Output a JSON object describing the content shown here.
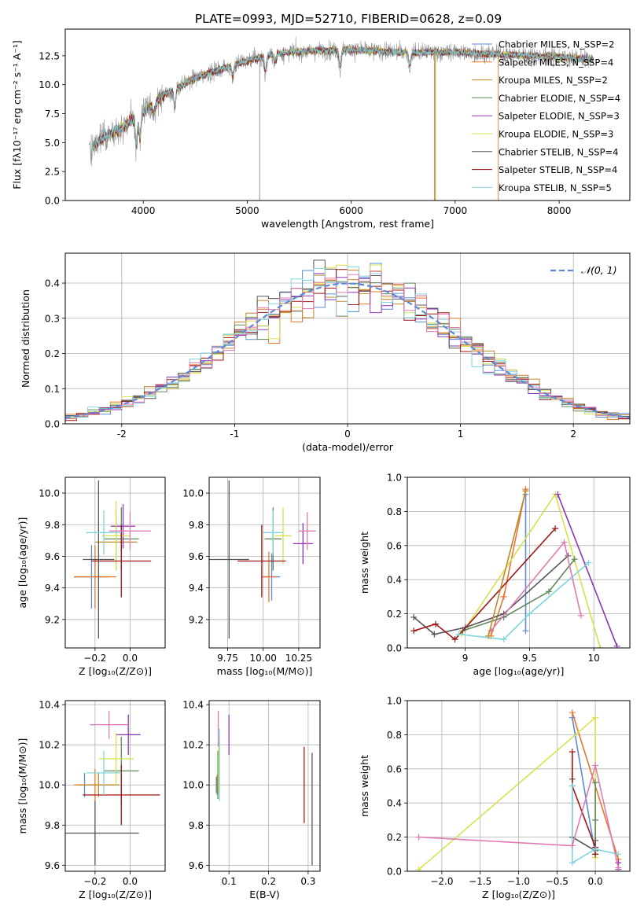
{
  "title": "PLATE=0993, MJD=52710, FIBERID=0628, z=0.09",
  "colors": {
    "axes": "#000000",
    "grid": "#b0b0b0",
    "series": [
      "#5b8bd8",
      "#e8762a",
      "#c08a2c",
      "#5c8a5c",
      "#8e35b5",
      "#d8e04a",
      "#555555",
      "#a01515",
      "#7ed6dc",
      "#e07ab0",
      "#888888"
    ]
  },
  "chart_data": [
    {
      "id": "spectrum",
      "type": "line",
      "xlabel": "wavelength [Angstrom, rest frame]",
      "ylabel": "Flux [fλ10⁻¹⁷ erg cm⁻² s⁻¹ A⁻¹]",
      "xlim": [
        3250,
        8680
      ],
      "ylim": [
        0,
        14.8
      ],
      "xticks": [
        4000,
        5000,
        6000,
        7000,
        8000
      ],
      "yticks": [
        0.0,
        2.5,
        5.0,
        7.5,
        10.0,
        12.5
      ],
      "grid": false,
      "legend_position": "right",
      "legend": [
        "Chabrier MILES, N_SSP=2",
        "Salpeter MILES, N_SSP=4",
        "Kroupa MILES, N_SSP=2",
        "Chabrier ELODIE, N_SSP=4",
        "Salpeter ELODIE, N_SSP=3",
        "Kroupa ELODIE, N_SSP=3",
        "Chabrier STELIB, N_SSP=4",
        "Salpeter STELIB, N_SSP=4",
        "Kroupa STELIB, N_SSP=5"
      ],
      "continuum": {
        "x": [
          3500,
          3650,
          3800,
          4000,
          4200,
          4500,
          4800,
          5000,
          5300,
          5600,
          6000,
          6500,
          7000,
          7500,
          8000,
          8300
        ],
        "y": [
          4.6,
          5.6,
          6.3,
          7.6,
          9.1,
          10.6,
          11.5,
          12.1,
          12.7,
          12.9,
          13.0,
          12.8,
          12.8,
          12.6,
          12.4,
          12.2
        ]
      },
      "features": [
        {
          "name": "CaII",
          "x": 3934,
          "depth": 2.8
        },
        {
          "name": "CaII",
          "x": 3968,
          "depth": 2.4
        },
        {
          "name": "Hdelta",
          "x": 4102,
          "depth": 1.3
        },
        {
          "name": "Gband",
          "x": 4304,
          "depth": 1.9
        },
        {
          "name": "Hbeta",
          "x": 4861,
          "depth": 1.1
        },
        {
          "name": "Mgb",
          "x": 5175,
          "depth": 1.6
        },
        {
          "name": "Fe",
          "x": 5270,
          "depth": 0.8
        },
        {
          "name": "NaD",
          "x": 5893,
          "depth": 1.8
        },
        {
          "name": "Halpha",
          "x": 6563,
          "depth": 1.4
        }
      ],
      "spikes": [
        {
          "x": 5120,
          "to": 0
        },
        {
          "x": 6800,
          "to": 0
        },
        {
          "x": 6810,
          "to": 0
        },
        {
          "x": 7415,
          "to": 0
        }
      ]
    },
    {
      "id": "residuals",
      "type": "histogram",
      "xlabel": "(data-model)/error",
      "ylabel": "Normed distribution",
      "xlim": [
        -2.5,
        2.5
      ],
      "ylim": [
        0,
        0.485
      ],
      "xticks": [
        -2,
        -1,
        0,
        1,
        2
      ],
      "yticks": [
        0.0,
        0.1,
        0.2,
        0.3,
        0.4
      ],
      "grid": true,
      "legend_position": "top-right",
      "legend": [
        "𝒩(0, 1)"
      ],
      "reference": {
        "name": "𝒩(0, 1)",
        "mean": 0,
        "sigma": 1
      }
    },
    {
      "id": "age_vs_Z",
      "type": "errorbar",
      "xlabel": "Z [log₁₀(Z/Z⊙)]",
      "ylabel": "age  [log₁₀(age/yr)]",
      "xlim": [
        -0.37,
        0.2
      ],
      "ylim": [
        9.02,
        10.1
      ],
      "xticks": [
        -0.2,
        0.0
      ],
      "xticklabels": [
        "−0.2",
        "0.0"
      ],
      "yticks": [
        9.2,
        9.4,
        9.6,
        9.8,
        10.0
      ],
      "grid": true,
      "points": [
        {
          "x": -0.22,
          "y": 9.47,
          "xerr": 0.1,
          "yerr": 0.2,
          "color": 0
        },
        {
          "x": -0.2,
          "y": 9.47,
          "xerr": 0.12,
          "yerr": 0.2,
          "color": 1
        },
        {
          "x": -0.08,
          "y": 9.69,
          "xerr": 0.12,
          "yerr": 0.18,
          "color": 2
        },
        {
          "x": -0.05,
          "y": 9.71,
          "xerr": 0.1,
          "yerr": 0.2,
          "color": 3
        },
        {
          "x": -0.04,
          "y": 9.79,
          "xerr": 0.07,
          "yerr": 0.14,
          "color": 4
        },
        {
          "x": -0.08,
          "y": 9.73,
          "xerr": 0.08,
          "yerr": 0.22,
          "color": 5
        },
        {
          "x": -0.18,
          "y": 9.58,
          "xerr": 0.09,
          "yerr": 0.5,
          "color": 6
        },
        {
          "x": -0.05,
          "y": 9.57,
          "xerr": 0.17,
          "yerr": 0.23,
          "color": 7
        },
        {
          "x": -0.15,
          "y": 9.75,
          "xerr": 0.1,
          "yerr": 0.14,
          "color": 8
        },
        {
          "x": 0.0,
          "y": 9.76,
          "xerr": 0.12,
          "yerr": 0.12,
          "color": 9
        }
      ]
    },
    {
      "id": "age_vs_mass",
      "type": "errorbar",
      "xlabel": "mass [log₁₀(M/M⊙)]",
      "ylabel": "",
      "xlim": [
        9.62,
        10.4
      ],
      "ylim": [
        9.02,
        10.1
      ],
      "xticks": [
        9.75,
        10.0,
        10.25
      ],
      "xticklabels": [
        "9.75",
        "10.00",
        "10.25"
      ],
      "yticks": [
        9.2,
        9.4,
        9.6,
        9.8,
        10.0
      ],
      "grid": true,
      "points": [
        {
          "x": 10.06,
          "y": 9.47,
          "xerr": 0.06,
          "yerr": 0.15,
          "color": 0
        },
        {
          "x": 10.04,
          "y": 9.47,
          "xerr": 0.05,
          "yerr": 0.16,
          "color": 1
        },
        {
          "x": 10.07,
          "y": 9.71,
          "xerr": 0.05,
          "yerr": 0.18,
          "color": 2
        },
        {
          "x": 10.07,
          "y": 9.71,
          "xerr": 0.06,
          "yerr": 0.2,
          "color": 3
        },
        {
          "x": 10.28,
          "y": 9.68,
          "xerr": 0.07,
          "yerr": 0.13,
          "color": 4
        },
        {
          "x": 10.14,
          "y": 9.73,
          "xerr": 0.06,
          "yerr": 0.18,
          "color": 5
        },
        {
          "x": 9.76,
          "y": 9.58,
          "xerr": 0.14,
          "yerr": 0.5,
          "color": 6
        },
        {
          "x": 9.99,
          "y": 9.57,
          "xerr": 0.17,
          "yerr": 0.23,
          "color": 7
        },
        {
          "x": 10.07,
          "y": 9.75,
          "xerr": 0.07,
          "yerr": 0.14,
          "color": 8
        },
        {
          "x": 10.31,
          "y": 9.76,
          "xerr": 0.06,
          "yerr": 0.12,
          "color": 9
        }
      ]
    },
    {
      "id": "weight_vs_age",
      "type": "line",
      "xlabel": "age  [log₁₀(age/yr)]",
      "ylabel": "mass weight",
      "xlim": [
        8.55,
        10.28
      ],
      "ylim": [
        0,
        1.0
      ],
      "xticks": [
        9.0,
        9.5,
        10.0
      ],
      "yticks": [
        0.0,
        0.2,
        0.4,
        0.6,
        0.8,
        1.0
      ],
      "grid": true,
      "series": [
        {
          "color": 0,
          "x": [
            9.47,
            9.47
          ],
          "y": [
            0.1,
            0.9
          ]
        },
        {
          "color": 1,
          "x": [
            9.2,
            9.3,
            9.47,
            9.47
          ],
          "y": [
            0.07,
            0.3,
            0.93,
            0.92
          ]
        },
        {
          "color": 5,
          "x": [
            8.97,
            9.7,
            10.05
          ],
          "y": [
            0.08,
            0.9,
            0.0
          ]
        },
        {
          "color": 3,
          "x": [
            8.98,
            9.3,
            9.65,
            9.85
          ],
          "y": [
            0.1,
            0.18,
            0.33,
            0.52
          ]
        },
        {
          "color": 4,
          "x": [
            9.72,
            10.18
          ],
          "y": [
            0.9,
            0.01
          ]
        },
        {
          "color": 6,
          "x": [
            8.6,
            8.76,
            9.0,
            9.3,
            9.8
          ],
          "y": [
            0.18,
            0.08,
            0.12,
            0.2,
            0.54
          ]
        },
        {
          "color": 7,
          "x": [
            8.6,
            8.77,
            8.92,
            9.7
          ],
          "y": [
            0.1,
            0.14,
            0.05,
            0.7
          ]
        },
        {
          "color": 8,
          "x": [
            8.95,
            9.3,
            9.5,
            9.96
          ],
          "y": [
            0.08,
            0.05,
            0.2,
            0.5
          ]
        },
        {
          "color": 9,
          "x": [
            9.2,
            9.77,
            9.9
          ],
          "y": [
            0.1,
            0.62,
            0.19
          ]
        },
        {
          "color": 2,
          "x": [
            9.18,
            9.47
          ],
          "y": [
            0.07,
            0.92
          ]
        }
      ]
    },
    {
      "id": "mass_vs_Z",
      "type": "errorbar",
      "xlabel": "Z [log₁₀(Z/Z⊙)]",
      "ylabel": "mass [log₁₀(M/M⊙)]",
      "xlim": [
        -0.37,
        0.2
      ],
      "ylim": [
        9.57,
        10.42
      ],
      "xticks": [
        -0.2,
        0.0
      ],
      "xticklabels": [
        "−0.2",
        "0.0"
      ],
      "yticks": [
        9.6,
        9.8,
        10.0,
        10.2,
        10.4
      ],
      "grid": true,
      "points": [
        {
          "x": -0.26,
          "y": 10.0,
          "xerr": 0.04,
          "yerr": 0.06,
          "color": 0
        },
        {
          "x": -0.2,
          "y": 10.0,
          "xerr": 0.12,
          "yerr": 0.08,
          "color": 1
        },
        {
          "x": -0.18,
          "y": 10.0,
          "xerr": 0.12,
          "yerr": 0.06,
          "color": 2
        },
        {
          "x": -0.05,
          "y": 10.07,
          "xerr": 0.1,
          "yerr": 0.17,
          "color": 3
        },
        {
          "x": -0.01,
          "y": 10.25,
          "xerr": 0.07,
          "yerr": 0.1,
          "color": 4
        },
        {
          "x": -0.08,
          "y": 10.13,
          "xerr": 0.1,
          "yerr": 0.13,
          "color": 5
        },
        {
          "x": -0.2,
          "y": 9.76,
          "xerr": 0.25,
          "yerr": 0.16,
          "color": 6
        },
        {
          "x": -0.05,
          "y": 9.95,
          "xerr": 0.22,
          "yerr": 0.15,
          "color": 7
        },
        {
          "x": -0.15,
          "y": 10.06,
          "xerr": 0.1,
          "yerr": 0.11,
          "color": 8
        },
        {
          "x": -0.12,
          "y": 10.3,
          "xerr": 0.11,
          "yerr": 0.07,
          "color": 9
        }
      ]
    },
    {
      "id": "mass_vs_ebv",
      "type": "errorbar",
      "xlabel": "E(B-V)",
      "ylabel": "",
      "xlim": [
        0.05,
        0.33
      ],
      "ylim": [
        9.57,
        10.42
      ],
      "xticks": [
        0.1,
        0.2,
        0.3
      ],
      "xticklabels": [
        "0.1",
        "0.2",
        "0.3"
      ],
      "yticks": [
        9.6,
        9.8,
        10.0,
        10.2,
        10.4
      ],
      "grid": true,
      "points": [
        {
          "x": 0.068,
          "y": 10.0,
          "xerr": 0,
          "yerr": 0.04,
          "color": 0
        },
        {
          "x": 0.07,
          "y": 10.0,
          "xerr": 0,
          "yerr": 0.05,
          "color": 2
        },
        {
          "x": 0.072,
          "y": 10.05,
          "xerr": 0,
          "yerr": 0.12,
          "color": 3
        },
        {
          "x": 0.1,
          "y": 10.25,
          "xerr": 0,
          "yerr": 0.1,
          "color": 4
        },
        {
          "x": 0.074,
          "y": 10.1,
          "xerr": 0,
          "yerr": 0.13,
          "color": 5
        },
        {
          "x": 0.31,
          "y": 9.88,
          "xerr": 0,
          "yerr": 0.28,
          "color": 6
        },
        {
          "x": 0.29,
          "y": 10.0,
          "xerr": 0,
          "yerr": 0.19,
          "color": 7
        },
        {
          "x": 0.076,
          "y": 10.1,
          "xerr": 0,
          "yerr": 0.18,
          "color": 8
        },
        {
          "x": 0.073,
          "y": 10.28,
          "xerr": 0,
          "yerr": 0.09,
          "color": 9
        }
      ]
    },
    {
      "id": "weight_vs_Z",
      "type": "line",
      "xlabel": "Z [log₁₀(Z/Z⊙)]",
      "ylabel": "mass weight",
      "xlim": [
        -2.45,
        0.45
      ],
      "ylim": [
        0,
        1.0
      ],
      "xticks": [
        -2.0,
        -1.5,
        -1.0,
        -0.5,
        0.0
      ],
      "xticklabels": [
        "−2.0",
        "−1.5",
        "−1.0",
        "−0.5",
        "0.0"
      ],
      "yticks": [
        0.0,
        0.2,
        0.4,
        0.6,
        0.8,
        1.0
      ],
      "grid": true,
      "series": [
        {
          "color": 0,
          "x": [
            -0.3,
            0.0
          ],
          "y": [
            0.9,
            0.1
          ]
        },
        {
          "color": 1,
          "x": [
            -0.3,
            0.3
          ],
          "y": [
            0.93,
            0.07
          ]
        },
        {
          "color": 5,
          "x": [
            -2.3,
            0.0,
            0.0
          ],
          "y": [
            0.01,
            0.9,
            0.08
          ]
        },
        {
          "color": 3,
          "x": [
            0.0,
            0.0,
            0.0
          ],
          "y": [
            0.52,
            0.3,
            0.1
          ]
        },
        {
          "color": 4,
          "x": [
            0.3,
            0.3
          ],
          "y": [
            0.01,
            0.05
          ]
        },
        {
          "color": 6,
          "x": [
            -0.3,
            -0.3,
            0.0,
            0.0
          ],
          "y": [
            0.54,
            0.2,
            0.12,
            0.18
          ]
        },
        {
          "color": 7,
          "x": [
            -0.3,
            -0.3,
            0.0,
            0.0
          ],
          "y": [
            0.7,
            0.5,
            0.14,
            0.1
          ]
        },
        {
          "color": 8,
          "x": [
            -0.3,
            -0.3,
            0.0,
            0.3
          ],
          "y": [
            0.5,
            0.05,
            0.13,
            0.1
          ]
        },
        {
          "color": 9,
          "x": [
            -2.3,
            -0.3,
            0.0,
            0.3
          ],
          "y": [
            0.2,
            0.15,
            0.62,
            0.02
          ]
        }
      ]
    }
  ]
}
